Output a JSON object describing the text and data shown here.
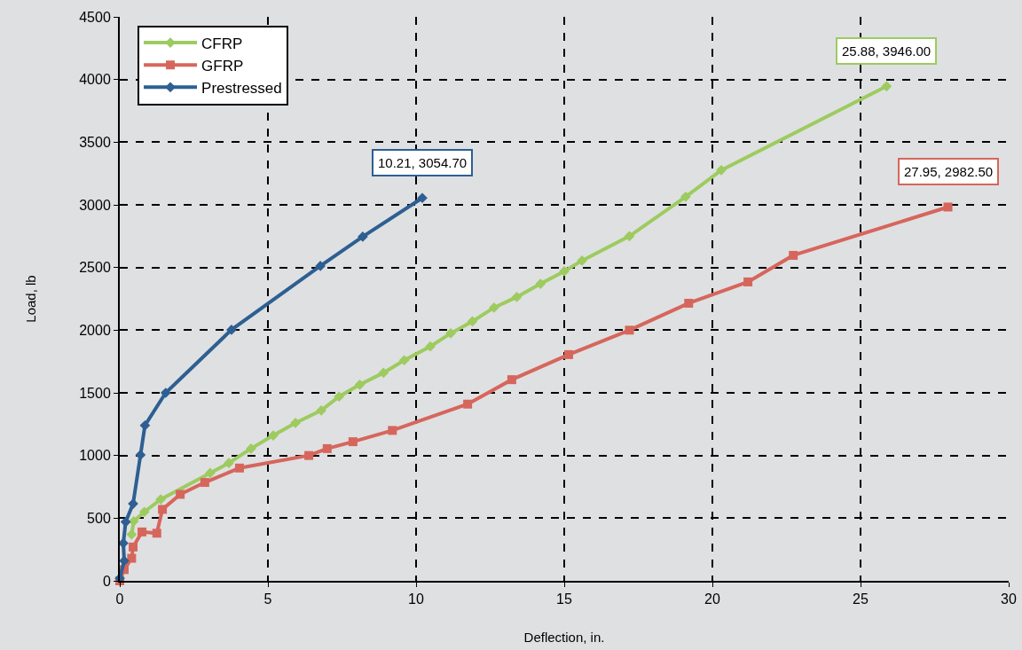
{
  "chart_data": {
    "type": "line",
    "xlabel": "Deflection, in.",
    "ylabel": "Load, lb",
    "xlim": [
      0,
      30
    ],
    "xticks": [
      0,
      5,
      10,
      15,
      20,
      25,
      30
    ],
    "ylim": [
      0,
      4500
    ],
    "yticks": [
      0,
      500,
      1000,
      1500,
      2000,
      2500,
      3000,
      3500,
      4000,
      4500
    ],
    "grid": true,
    "legend": "top left",
    "line_style": "solid",
    "series": [
      {
        "name": "CFRP",
        "color": "#9dcb5f",
        "marker": "diamond",
        "x": [
          0.4,
          0.47,
          0.83,
          1.38,
          3.05,
          3.68,
          4.43,
          5.18,
          5.93,
          6.8,
          7.4,
          8.1,
          8.9,
          9.6,
          10.48,
          11.17,
          11.9,
          12.63,
          13.4,
          14.2,
          15.0,
          15.6,
          17.2,
          19.1,
          20.3,
          25.88
        ],
        "values": [
          370,
          475,
          550,
          650,
          860,
          940,
          1055,
          1160,
          1260,
          1360,
          1470,
          1565,
          1660,
          1760,
          1870,
          1975,
          2070,
          2180,
          2265,
          2370,
          2470,
          2555,
          2750,
          3065,
          3277,
          3946
        ]
      },
      {
        "name": "GFRP",
        "color": "#d6665c",
        "marker": "square",
        "x": [
          0,
          0.15,
          0.4,
          0.45,
          0.75,
          1.25,
          1.44,
          2.04,
          2.87,
          4.04,
          6.38,
          7.0,
          7.87,
          9.2,
          11.74,
          13.23,
          15.15,
          17.2,
          19.2,
          21.2,
          22.73,
          27.95
        ],
        "values": [
          0,
          90,
          180,
          270,
          390,
          380,
          570,
          690,
          785,
          900,
          1000,
          1055,
          1110,
          1200,
          1410,
          1605,
          1805,
          2000,
          2215,
          2385,
          2597,
          2982.5
        ]
      },
      {
        "name": "Prestressed",
        "color": "#2d5f92",
        "marker": "diamond",
        "x": [
          0,
          0.15,
          0.12,
          0.2,
          0.45,
          0.7,
          0.85,
          1.55,
          3.77,
          6.77,
          8.2,
          10.21
        ],
        "values": [
          20,
          160,
          300,
          470,
          615,
          1005,
          1240,
          1500,
          2003,
          2512,
          2746,
          3054.7
        ]
      }
    ],
    "annotations": [
      {
        "text": "10.21, 3054.70",
        "x": 10.21,
        "y": 3054.7
      },
      {
        "text": "25.88, 3946.00",
        "x": 25.88,
        "y": 3946
      },
      {
        "text": "27.95, 2982.50",
        "x": 27.95,
        "y": 2982.5
      }
    ]
  }
}
